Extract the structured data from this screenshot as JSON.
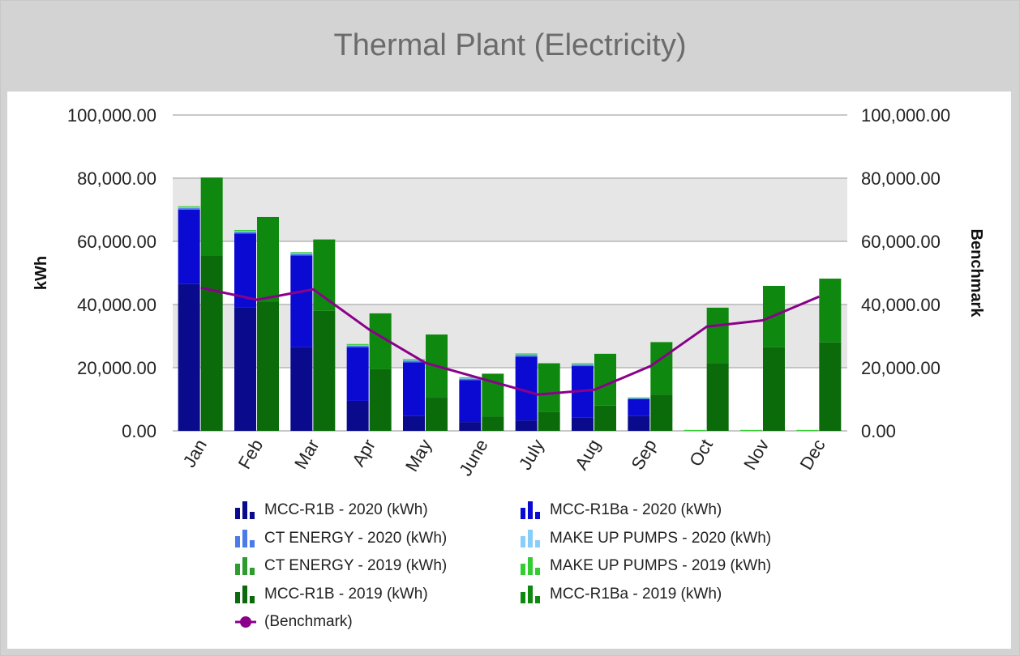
{
  "title": "Thermal Plant (Electricity)",
  "chart_data": {
    "type": "bar",
    "stacked": true,
    "categories": [
      "Jan",
      "Feb",
      "Mar",
      "Apr",
      "May",
      "June",
      "July",
      "Aug",
      "Sep",
      "Oct",
      "Nov",
      "Dec"
    ],
    "ylabel": "kWh",
    "y2label": "Benchmark",
    "ylim": [
      0,
      100000
    ],
    "yticks": [
      "0.00",
      "20,000.00",
      "40,000.00",
      "60,000.00",
      "80,000.00",
      "100,000.00"
    ],
    "y2ticks": [
      "0.00",
      "20,000.00",
      "40,000.00",
      "60,000.00",
      "80,000.00",
      "100,000.00"
    ],
    "grid": true,
    "legend_position": "bottom",
    "stacks": [
      {
        "stack": "2020",
        "series": [
          {
            "name": "MCC-R1B - 2020 (kWh)",
            "color": "#0a0a8c",
            "values": [
              46500,
              39000,
              26500,
              9500,
              4700,
              2800,
              3300,
              4300,
              4700,
              0,
              0,
              0
            ]
          },
          {
            "name": "MCC-R1Ba - 2020 (kWh)",
            "color": "#0a0ad2",
            "values": [
              23500,
              23500,
              29000,
              17000,
              17000,
              13300,
              20200,
              16200,
              5300,
              0,
              0,
              0
            ]
          },
          {
            "name": "CT ENERGY - 2020 (kWh)",
            "color": "#4a7be8",
            "values": [
              500,
              500,
              500,
              500,
              500,
              400,
              500,
              400,
              300,
              0,
              0,
              0
            ]
          },
          {
            "name": "MAKE UP PUMPS - 2020 (kWh)",
            "color": "#87cefa",
            "values": [
              300,
              300,
              300,
              200,
              200,
              200,
              200,
              200,
              100,
              0,
              0,
              0
            ]
          },
          {
            "name": "MAKE UP PUMPS - 2019 (kWh)",
            "color": "#33cc33",
            "values": [
              300,
              300,
              300,
              300,
              300,
              300,
              300,
              300,
              200,
              300,
              300,
              300
            ]
          }
        ]
      },
      {
        "stack": "2019",
        "series": [
          {
            "name": "MCC-R1B - 2019 (kWh)",
            "color": "#0b6b0b",
            "values": [
              55500,
              41000,
              38000,
              19500,
              10500,
              4500,
              6000,
              8000,
              11500,
              21500,
              26500,
              28000
            ]
          },
          {
            "name": "MCC-R1Ba - 2019 (kWh)",
            "color": "#0e880e",
            "values": [
              24700,
              26700,
              22600,
              17700,
              20000,
              13600,
              15400,
              16400,
              16600,
              17500,
              19400,
              20200
            ]
          },
          {
            "name": "CT ENERGY - 2019 (kWh)",
            "color": "#2e9b2e",
            "values": [
              0,
              0,
              0,
              0,
              0,
              0,
              0,
              0,
              0,
              0,
              0,
              0
            ]
          }
        ]
      }
    ],
    "line_series": {
      "name": "(Benchmark)",
      "color": "#8b008b",
      "values": [
        45300,
        41500,
        44800,
        32000,
        21500,
        16500,
        11500,
        13000,
        20500,
        33000,
        35000,
        42500
      ]
    }
  },
  "legend": [
    {
      "label": "MCC-R1B - 2020 (kWh)",
      "color": "#0a0a8c",
      "kind": "bar"
    },
    {
      "label": "MCC-R1Ba - 2020 (kWh)",
      "color": "#0a0ad2",
      "kind": "bar"
    },
    {
      "label": "CT ENERGY - 2020 (kWh)",
      "color": "#4a7be8",
      "kind": "bar"
    },
    {
      "label": "MAKE UP PUMPS - 2020 (kWh)",
      "color": "#87cefa",
      "kind": "bar"
    },
    {
      "label": "CT ENERGY - 2019 (kWh)",
      "color": "#2e9b2e",
      "kind": "bar"
    },
    {
      "label": "MAKE UP PUMPS - 2019 (kWh)",
      "color": "#33cc33",
      "kind": "bar"
    },
    {
      "label": "MCC-R1B - 2019 (kWh)",
      "color": "#0b6b0b",
      "kind": "bar"
    },
    {
      "label": "MCC-R1Ba - 2019 (kWh)",
      "color": "#0e880e",
      "kind": "bar"
    },
    {
      "label": "(Benchmark)",
      "color": "#8b008b",
      "kind": "line"
    }
  ]
}
